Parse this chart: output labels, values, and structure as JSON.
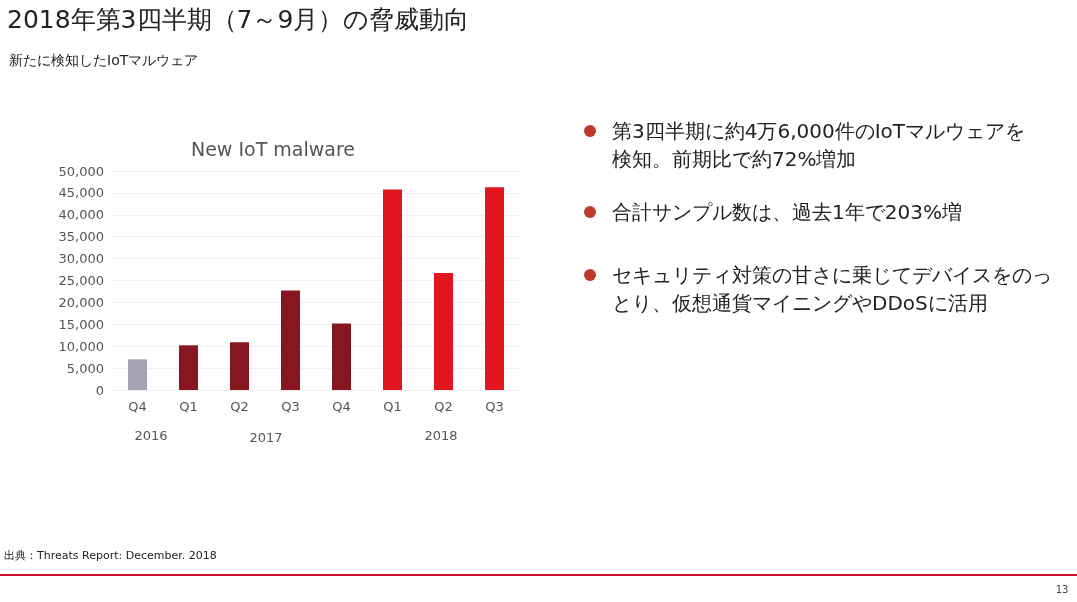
{
  "chart_data": {
    "type": "bar",
    "title": "2018年第3四半期（7～9月）の脅威動向",
    "subtitle": "新たに検知したIoTマルウェア",
    "categories": [
      "Q4",
      "Q1",
      "Q2",
      "Q3",
      "Q4",
      "Q1",
      "Q2",
      "Q3"
    ],
    "values": [
      7000,
      10200,
      10900,
      22700,
      15200,
      45800,
      26700,
      46300
    ],
    "colors": [
      "#a6a3b3",
      "#861620",
      "#861620",
      "#861620",
      "#861620",
      "#e3151f",
      "#e3151f",
      "#e3151f"
    ],
    "ylim": [
      0,
      50000
    ],
    "yticks": [
      0,
      {
        "value": 5000,
        "label": "5,000"
      },
      {
        "value": 10000,
        "label": "10,000"
      },
      {
        "value": 15000,
        "label": "15,000"
      },
      {
        "value": 20000,
        "label": "20,000"
      },
      {
        "value": 25000,
        "label": "25,000"
      },
      {
        "value": 30000,
        "label": "30,000"
      },
      {
        "value": 35000,
        "label": "35,000"
      },
      {
        "value": 40000,
        "label": "40,000"
      },
      {
        "value": 45000,
        "label": "45,000"
      },
      {
        "value": 50000,
        "label": "50,000"
      }
    ],
    "grid": "y",
    "annotations": [
      "New IoT malware",
      "2016",
      "2017",
      "2018",
      "第3四半期に約4万6,000件のIoTマルウェアを検知。前期比で約72%増加",
      "合計サンプル数は、過去1年で203%増",
      "セキュリティ対策の甘さに乗じてデバイスをのっとり、仮想通貨マイニングやDDoSに活用",
      "出典：Threats Report: December. 2018",
      "13"
    ]
  }
}
